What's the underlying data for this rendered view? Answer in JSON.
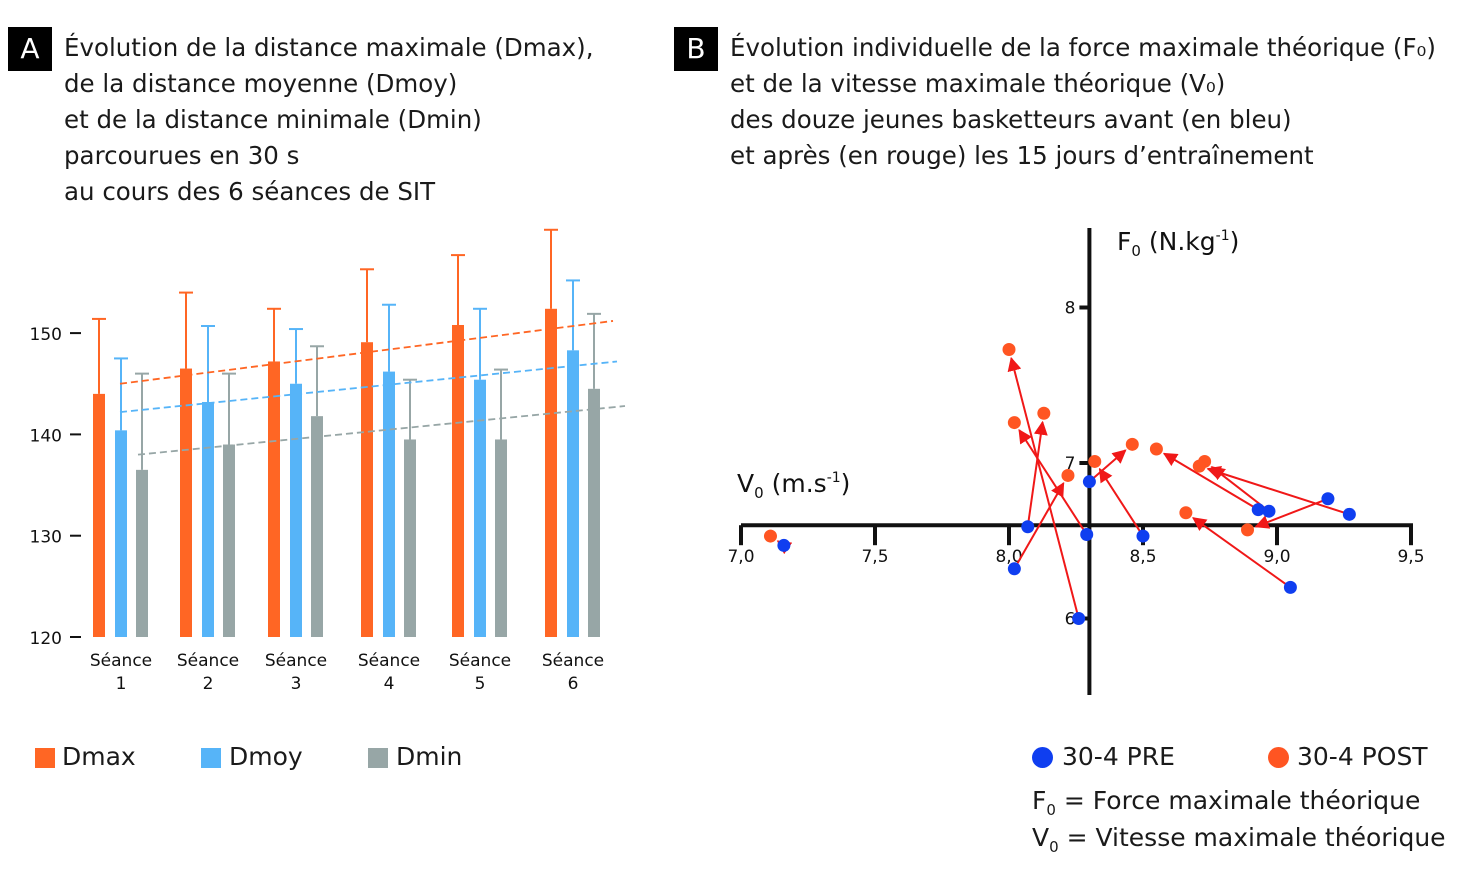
{
  "panel_a": {
    "label": "A",
    "title_lines": [
      "Évolution de la distance maximale (Dmax),",
      "de la distance moyenne (Dmoy)",
      "et de la distance minimale (Dmin)",
      "parcourues en 30 s",
      "au cours des 6 séances de SIT"
    ]
  },
  "panel_b": {
    "label": "B",
    "title_lines": [
      "Évolution individuelle de la force maximale théorique (F₀)",
      "et de la vitesse maximale théorique (V₀)",
      "des douze jeunes basketteurs avant (en bleu)",
      "et après (en rouge) les 15 jours d’entraînement"
    ],
    "notes": {
      "f0_symbol": "F",
      "f0_sub": "0",
      "f0_text": " = Force maximale théorique",
      "v0_symbol": "V",
      "v0_sub": "0",
      "v0_text": " = Vitesse maximale théorique"
    }
  },
  "chart_data": [
    {
      "type": "bar",
      "categories": [
        [
          "Séance",
          "1"
        ],
        [
          "Séance",
          "2"
        ],
        [
          "Séance",
          "3"
        ],
        [
          "Séance",
          "4"
        ],
        [
          "Séance",
          "5"
        ],
        [
          "Séance",
          "6"
        ]
      ],
      "ylim": [
        120,
        160
      ],
      "yticks": [
        120,
        130,
        140,
        150
      ],
      "grid": false,
      "legend_position": "bottom",
      "series": [
        {
          "name": "Dmax",
          "color": "#ff6624",
          "values": [
            144.0,
            146.5,
            147.2,
            149.1,
            150.8,
            152.4
          ],
          "error_upper": [
            151.4,
            154.0,
            152.4,
            156.3,
            157.7,
            160.2
          ],
          "trend": [
            145.0,
            151.2
          ]
        },
        {
          "name": "Dmoy",
          "color": "#56b4f8",
          "values": [
            140.4,
            143.2,
            145.0,
            146.2,
            145.4,
            148.3
          ],
          "error_upper": [
            147.5,
            150.7,
            150.4,
            152.8,
            152.4,
            155.2
          ],
          "trend": [
            142.2,
            147.2
          ]
        },
        {
          "name": "Dmin",
          "color": "#97a6a6",
          "values": [
            136.5,
            139.0,
            141.8,
            139.5,
            139.5,
            144.5
          ],
          "error_upper": [
            146.0,
            146.0,
            148.7,
            145.4,
            146.4,
            151.9
          ],
          "trend": [
            138.0,
            142.8
          ]
        }
      ]
    },
    {
      "type": "scatter",
      "xlabel": {
        "symbol": "V",
        "sub": "0",
        "unit": " (m.s",
        "exp": "-1",
        "close": ")"
      },
      "ylabel": {
        "symbol": "F",
        "sub": "0",
        "unit": " (N.kg",
        "exp": "-1",
        "close": ")"
      },
      "xlim": [
        7.0,
        9.5
      ],
      "ylim": [
        5.5,
        8.5
      ],
      "xticks": [
        "7,0",
        "7,5",
        "8,0",
        "8,5",
        "9,0",
        "9,5"
      ],
      "xtick_values": [
        7.0,
        7.5,
        8.0,
        8.5,
        9.0,
        9.5
      ],
      "yticks": [
        "6",
        "7",
        "8"
      ],
      "ytick_values": [
        6,
        7,
        8
      ],
      "axes_cross": [
        8.3,
        6.6
      ],
      "arrow_color": "#f01818",
      "series": [
        {
          "name": "30-4 PRE",
          "color": "#0f3ef0",
          "points": [
            [
              7.16,
              6.47
            ],
            [
              8.26,
              6.0
            ],
            [
              8.07,
              6.59
            ],
            [
              8.29,
              6.54
            ],
            [
              8.02,
              6.32
            ],
            [
              8.3,
              6.88
            ],
            [
              8.5,
              6.53
            ],
            [
              8.93,
              6.7
            ],
            [
              8.97,
              6.69
            ],
            [
              9.27,
              6.67
            ],
            [
              9.19,
              6.77
            ],
            [
              9.05,
              6.2
            ]
          ]
        },
        {
          "name": "30-4 POST",
          "color": "#ff5522",
          "points": [
            [
              7.11,
              6.53
            ],
            [
              8.0,
              7.73
            ],
            [
              8.13,
              7.32
            ],
            [
              8.02,
              7.26
            ],
            [
              8.22,
              6.92
            ],
            [
              8.46,
              7.12
            ],
            [
              8.32,
              7.01
            ],
            [
              8.55,
              7.09
            ],
            [
              8.73,
              7.01
            ],
            [
              8.71,
              6.98
            ],
            [
              8.89,
              6.57
            ],
            [
              8.66,
              6.68
            ]
          ]
        }
      ]
    }
  ]
}
